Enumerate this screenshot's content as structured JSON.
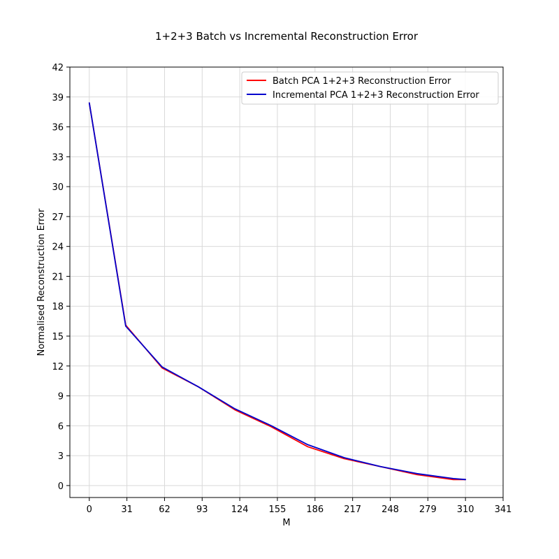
{
  "chart_data": {
    "type": "line",
    "title": "1+2+3 Batch vs Incremental Reconstruction Error",
    "xlabel": "M",
    "ylabel": "Normalised Reconstruction Error",
    "xlim": [
      -16,
      341
    ],
    "ylim": [
      -1.2,
      42
    ],
    "xticks": [
      0,
      31,
      62,
      93,
      124,
      155,
      186,
      217,
      248,
      279,
      310,
      341
    ],
    "yticks": [
      0,
      3,
      6,
      9,
      12,
      15,
      18,
      21,
      24,
      27,
      30,
      33,
      36,
      39,
      42
    ],
    "grid": true,
    "legend_position": "top-right",
    "series": [
      {
        "name": "Batch PCA 1+2+3 Reconstruction Error",
        "color": "#ff0000",
        "x": [
          0,
          30,
          60,
          90,
          120,
          150,
          180,
          210,
          240,
          270,
          300,
          310
        ],
        "y": [
          38.4,
          16.1,
          11.8,
          9.9,
          7.6,
          5.9,
          3.9,
          2.7,
          1.9,
          1.1,
          0.6,
          0.6
        ]
      },
      {
        "name": "Incremental PCA 1+2+3 Reconstruction Error",
        "color": "#0000cd",
        "x": [
          0,
          30,
          60,
          90,
          120,
          150,
          180,
          210,
          240,
          270,
          300,
          310
        ],
        "y": [
          38.4,
          16.0,
          11.9,
          9.9,
          7.7,
          6.0,
          4.1,
          2.8,
          1.9,
          1.2,
          0.7,
          0.6
        ]
      }
    ]
  }
}
